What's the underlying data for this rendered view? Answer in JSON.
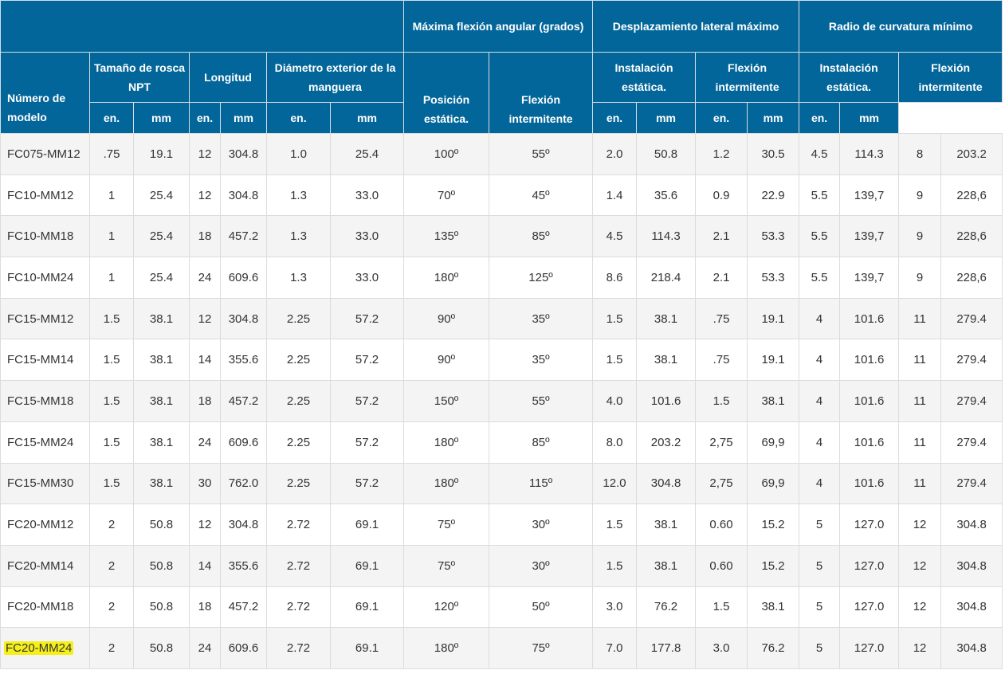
{
  "header": {
    "group_flex": "Máxima flexión angular (grados)",
    "group_lateral": "Desplazamiento lateral máximo",
    "group_radius": "Radio de curvatura mínimo",
    "model": "Número de modelo",
    "thread": "Tamaño de rosca NPT",
    "length": "Longitud",
    "hose_od": "Diámetro exterior de la manguera",
    "static_pos": "Posición estática.",
    "intermittent": "Flexión intermitente",
    "lat_static": "Instalación estática.",
    "lat_inter": "Flexión intermitente",
    "rad_static": "Instalación estática.",
    "rad_inter": "Flexión intermitente",
    "unit_in": "en.",
    "unit_mm": "mm"
  },
  "highlight_color": "#f5ef1a",
  "header_color": "#03669a",
  "rows": [
    [
      "FC075-MM12",
      ".75",
      "19.1",
      "12",
      "304.8",
      "1.0",
      "25.4",
      "100º",
      "55º",
      "2.0",
      "50.8",
      "1.2",
      "30.5",
      "4.5",
      "114.3",
      "8",
      "203.2"
    ],
    [
      "FC10-MM12",
      "1",
      "25.4",
      "12",
      "304.8",
      "1.3",
      "33.0",
      "70º",
      "45º",
      "1.4",
      "35.6",
      "0.9",
      "22.9",
      "5.5",
      "139,7",
      "9",
      "228,6"
    ],
    [
      "FC10-MM18",
      "1",
      "25.4",
      "18",
      "457.2",
      "1.3",
      "33.0",
      "135º",
      "85º",
      "4.5",
      "114.3",
      "2.1",
      "53.3",
      "5.5",
      "139,7",
      "9",
      "228,6"
    ],
    [
      "FC10-MM24",
      "1",
      "25.4",
      "24",
      "609.6",
      "1.3",
      "33.0",
      "180º",
      "125º",
      "8.6",
      "218.4",
      "2.1",
      "53.3",
      "5.5",
      "139,7",
      "9",
      "228,6"
    ],
    [
      "FC15-MM12",
      "1.5",
      "38.1",
      "12",
      "304.8",
      "2.25",
      "57.2",
      "90º",
      "35º",
      "1.5",
      "38.1",
      ".75",
      "19.1",
      "4",
      "101.6",
      "11",
      "279.4"
    ],
    [
      "FC15-MM14",
      "1.5",
      "38.1",
      "14",
      "355.6",
      "2.25",
      "57.2",
      "90º",
      "35º",
      "1.5",
      "38.1",
      ".75",
      "19.1",
      "4",
      "101.6",
      "11",
      "279.4"
    ],
    [
      "FC15-MM18",
      "1.5",
      "38.1",
      "18",
      "457.2",
      "2.25",
      "57.2",
      "150º",
      "55º",
      "4.0",
      "101.6",
      "1.5",
      "38.1",
      "4",
      "101.6",
      "11",
      "279.4"
    ],
    [
      "FC15-MM24",
      "1.5",
      "38.1",
      "24",
      "609.6",
      "2.25",
      "57.2",
      "180º",
      "85º",
      "8.0",
      "203.2",
      "2,75",
      "69,9",
      "4",
      "101.6",
      "11",
      "279.4"
    ],
    [
      "FC15-MM30",
      "1.5",
      "38.1",
      "30",
      "762.0",
      "2.25",
      "57.2",
      "180º",
      "115º",
      "12.0",
      "304.8",
      "2,75",
      "69,9",
      "4",
      "101.6",
      "11",
      "279.4"
    ],
    [
      "FC20-MM12",
      "2",
      "50.8",
      "12",
      "304.8",
      "2.72",
      "69.1",
      "75º",
      "30º",
      "1.5",
      "38.1",
      "0.60",
      "15.2",
      "5",
      "127.0",
      "12",
      "304.8"
    ],
    [
      "FC20-MM14",
      "2",
      "50.8",
      "14",
      "355.6",
      "2.72",
      "69.1",
      "75º",
      "30º",
      "1.5",
      "38.1",
      "0.60",
      "15.2",
      "5",
      "127.0",
      "12",
      "304.8"
    ],
    [
      "FC20-MM18",
      "2",
      "50.8",
      "18",
      "457.2",
      "2.72",
      "69.1",
      "120º",
      "50º",
      "3.0",
      "76.2",
      "1.5",
      "38.1",
      "5",
      "127.0",
      "12",
      "304.8"
    ],
    [
      "FC20-MM24",
      "2",
      "50.8",
      "24",
      "609.6",
      "2.72",
      "69.1",
      "180º",
      "75º",
      "7.0",
      "177.8",
      "3.0",
      "76.2",
      "5",
      "127.0",
      "12",
      "304.8"
    ]
  ],
  "highlighted_row": 12
}
